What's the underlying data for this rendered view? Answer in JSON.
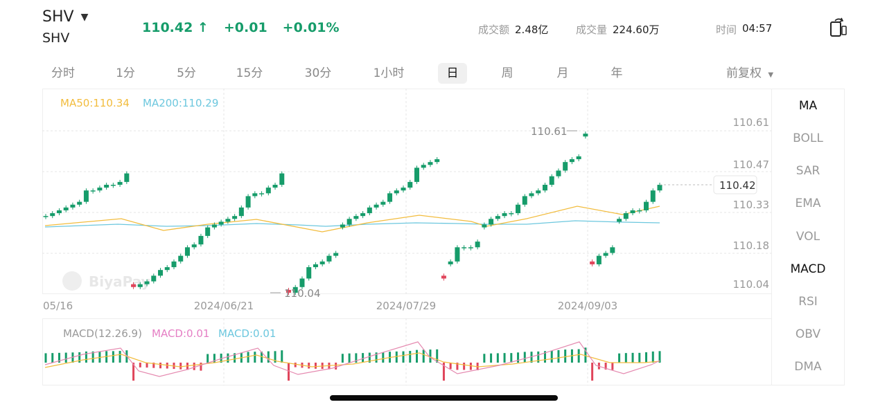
{
  "header": {
    "symbol": "SHV",
    "name": "SHV",
    "price": "110.42 ↑",
    "change": "+0.01",
    "change_pct": "+0.01%",
    "turnover_label": "成交额",
    "turnover_value": "2.48亿",
    "volume_label": "成交量",
    "volume_value": "224.60万",
    "time_label": "时间",
    "time_value": "04:57"
  },
  "tabs": [
    "分时",
    "1分",
    "5分",
    "15分",
    "30分",
    "1小时",
    "日",
    "周",
    "月",
    "年"
  ],
  "active_tab": "日",
  "adjust_label": "前复权",
  "legend": {
    "ma50": "MA50:110.34",
    "ma200": "MA200:110.29"
  },
  "price_axis": [
    "110.61",
    "110.47",
    "110.33",
    "110.18",
    "110.04"
  ],
  "last_price_tag": "110.42",
  "high_label": "110.61",
  "low_label": "110.04",
  "date_axis": [
    "05/16",
    "2024/06/21",
    "2024/07/29",
    "2024/09/03"
  ],
  "macd_legend": {
    "params": "MACD(12.26.9)",
    "dif": "MACD:0.01",
    "dea": "MACD:0.01"
  },
  "indicators": [
    "MA",
    "BOLL",
    "SAR",
    "EMA",
    "VOL",
    "MACD",
    "RSI",
    "OBV",
    "DMA"
  ],
  "active_indicators": [
    "MA",
    "MACD"
  ],
  "watermark": "BiyaPay",
  "colors": {
    "up": "#169c6a",
    "down": "#e0455b",
    "ma50": "#f2bc3d",
    "ma200": "#6cc7de"
  },
  "chart_data": {
    "type": "candlestick",
    "ylim": [
      110.04,
      110.61
    ],
    "series": [
      {
        "name": "MA50",
        "values_described": "flat around 110.30-110.36"
      },
      {
        "name": "MA200",
        "values_described": "flat around 110.29-110.31"
      }
    ],
    "closes": [
      110.31,
      110.32,
      110.33,
      110.34,
      110.35,
      110.36,
      110.4,
      110.4,
      110.41,
      110.42,
      110.42,
      110.43,
      110.46,
      110.06,
      110.07,
      110.08,
      110.1,
      110.12,
      110.13,
      110.15,
      110.17,
      110.2,
      110.21,
      110.24,
      110.27,
      110.28,
      110.29,
      110.3,
      110.31,
      110.34,
      110.38,
      110.39,
      110.39,
      110.41,
      110.42,
      110.46,
      110.04,
      110.06,
      110.09,
      110.13,
      110.14,
      110.15,
      110.17,
      110.18,
      110.28,
      110.3,
      110.31,
      110.32,
      110.34,
      110.35,
      110.36,
      110.39,
      110.4,
      110.41,
      110.43,
      110.48,
      110.49,
      110.5,
      110.51,
      110.09,
      110.15,
      110.2,
      110.2,
      110.2,
      110.22,
      110.28,
      110.3,
      110.31,
      110.32,
      110.32,
      110.35,
      110.38,
      110.39,
      110.4,
      110.42,
      110.45,
      110.47,
      110.5,
      110.51,
      110.52,
      110.6,
      110.14,
      110.17,
      110.18,
      110.2,
      110.3,
      110.32,
      110.33,
      110.33,
      110.36,
      110.4,
      110.42
    ]
  }
}
